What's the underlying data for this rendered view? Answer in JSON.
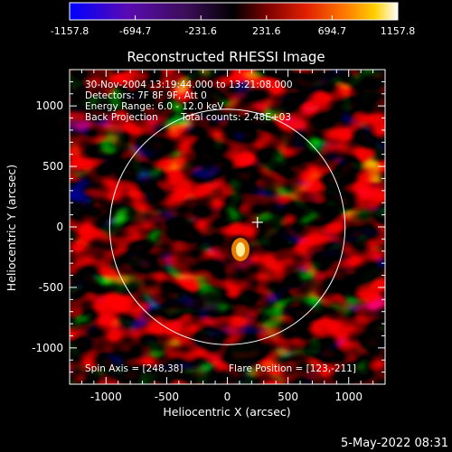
{
  "colorbar": {
    "tick_labels": [
      "-1157.8",
      "-694.7",
      "-231.6",
      "231.6",
      "694.7",
      "1157.8"
    ],
    "range": [
      -1157.8,
      1157.8
    ]
  },
  "plot": {
    "title": "Reconstructed RHESSI Image",
    "xlabel": "Heliocentric X (arcsec)",
    "ylabel": "Heliocentric Y (arcsec)",
    "x_ticks": [
      "-1000",
      "-500",
      "0",
      "500",
      "1000"
    ],
    "y_ticks": [
      "1000",
      "500",
      "0",
      "-500",
      "-1000"
    ],
    "annotations": [
      "30-Nov-2004 13:19:44.000 to 13:21:08.000",
      "Detectors: 7F 8F 9F, Att 0",
      "Energy Range: 6.0 - 12.0 keV",
      "Back Projection",
      "Total counts: 2.48E+03"
    ],
    "spin_axis": "Spin Axis = [248,38]",
    "flare_position": "Flare Position = [123,-211]",
    "solar_limb_radius_arcsec": 970,
    "marker_position_arcsec": [
      248,
      38
    ]
  },
  "footer": {
    "timestamp": "5-May-2022 08:31"
  },
  "colors": {
    "background": "#000000",
    "limb": "#ffffff",
    "colormap": [
      "#0000ff",
      "#5a0bb0",
      "#3a0d55",
      "#000000",
      "#7a0000",
      "#e02000",
      "#ff7a00",
      "#ffd000",
      "#ffffff"
    ]
  }
}
